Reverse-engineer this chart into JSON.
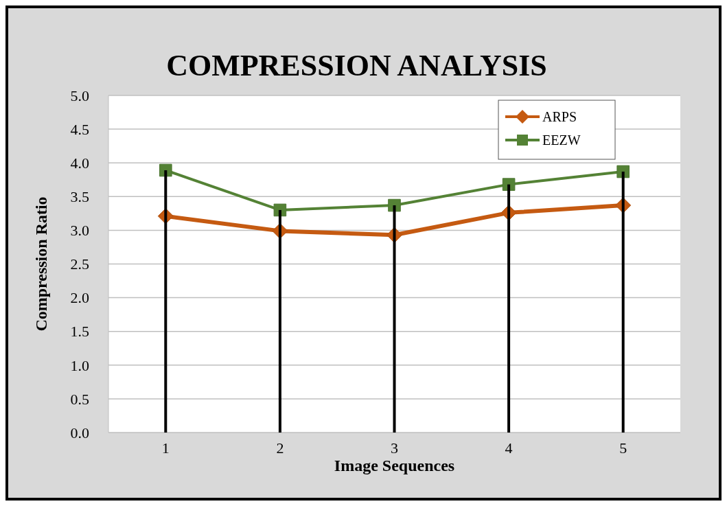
{
  "chart_data": {
    "type": "line",
    "title": "COMPRESSION ANALYSIS",
    "xlabel": "Image Sequences",
    "ylabel": "Compression Ratio",
    "categories": [
      "1",
      "2",
      "3",
      "4",
      "5"
    ],
    "series": [
      {
        "type": "bar",
        "color": "#000000",
        "values": [
          3.89,
          3.3,
          3.37,
          3.68,
          3.87
        ]
      },
      {
        "name": "ARPS",
        "color": "#c55a11",
        "values": [
          3.21,
          2.99,
          2.93,
          3.26,
          3.37
        ],
        "marker": "diamond"
      },
      {
        "name": "EEZW",
        "color": "#548235",
        "values": [
          3.89,
          3.3,
          3.37,
          3.68,
          3.87
        ],
        "marker": "square"
      }
    ],
    "ylim": [
      0,
      5
    ],
    "yticks": [
      {
        "value": 0,
        "label": "0.0"
      },
      {
        "value": 0.5,
        "label": "0.5"
      },
      {
        "value": 1,
        "label": "1.0"
      },
      {
        "value": 1.5,
        "label": "1.5"
      },
      {
        "value": 2,
        "label": "2.0"
      },
      {
        "value": 2.5,
        "label": "2.5"
      },
      {
        "value": 3,
        "label": "3.0"
      },
      {
        "value": 3.5,
        "label": "3.5"
      },
      {
        "value": 4,
        "label": "4.0"
      },
      {
        "value": 4.5,
        "label": "4.5"
      },
      {
        "value": 5,
        "label": "5.0"
      }
    ],
    "grid": "y",
    "legend": "top right"
  }
}
